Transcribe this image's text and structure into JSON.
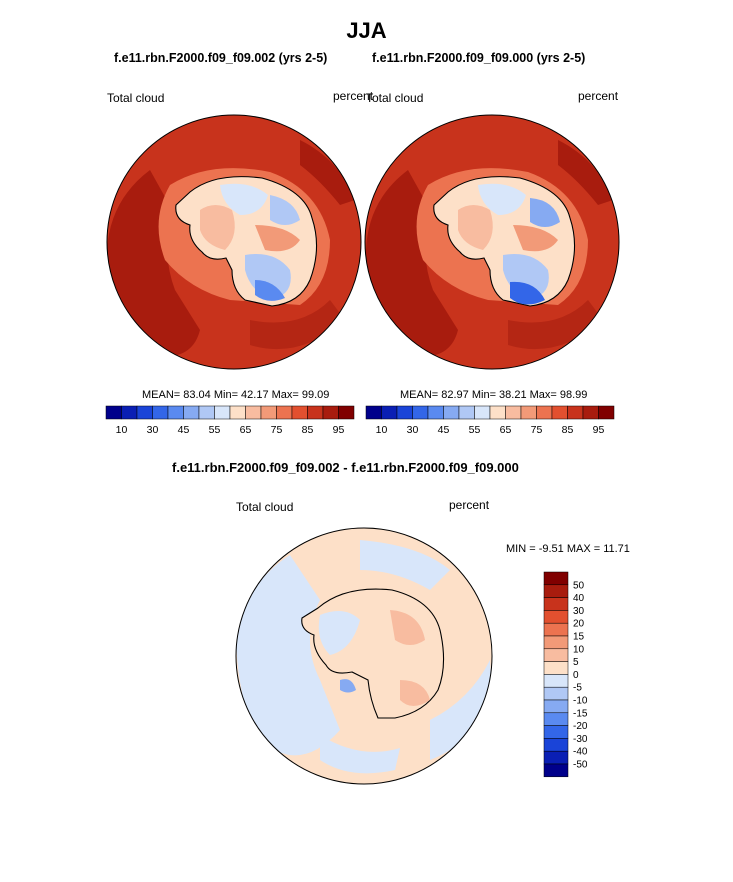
{
  "page": {
    "title": "JJA",
    "diff_title": "f.e11.rbn.F2000.f09_f09.002 - f.e11.rbn.F2000.f09_f09.000"
  },
  "chart_data": [
    {
      "type": "heatmap",
      "projection": "south polar stereographic",
      "case": "f.e11.rbn.F2000.f09_f09.002 (yrs 2-5)",
      "left_label": "Total cloud",
      "right_label": "percent",
      "mean": "83.04",
      "min": "42.17",
      "max": "99.09",
      "stats_text": "MEAN=  83.04  Min=  42.17  Max=  99.09",
      "colorbar": {
        "orientation": "horizontal",
        "levels": [
          10,
          20,
          30,
          40,
          45,
          50,
          55,
          60,
          65,
          70,
          75,
          80,
          85,
          90,
          95
        ],
        "tick_labels": [
          "10",
          "30",
          "45",
          "55",
          "65",
          "75",
          "85",
          "95"
        ]
      }
    },
    {
      "type": "heatmap",
      "projection": "south polar stereographic",
      "case": "f.e11.rbn.F2000.f09_f09.000 (yrs 2-5)",
      "left_label": "Total cloud",
      "right_label": "percent",
      "mean": "82.97",
      "min": "38.21",
      "max": "98.99",
      "stats_text": "MEAN=  82.97  Min=  38.21  Max=  98.99",
      "colorbar": {
        "orientation": "horizontal",
        "levels": [
          10,
          20,
          30,
          40,
          45,
          50,
          55,
          60,
          65,
          70,
          75,
          80,
          85,
          90,
          95
        ],
        "tick_labels": [
          "10",
          "30",
          "45",
          "55",
          "65",
          "75",
          "85",
          "95"
        ]
      }
    },
    {
      "type": "heatmap",
      "projection": "south polar stereographic",
      "case": "f.e11.rbn.F2000.f09_f09.002 - f.e11.rbn.F2000.f09_f09.000",
      "left_label": "Total cloud",
      "right_label": "percent",
      "min": "-9.51",
      "max": "11.71",
      "stats_text": "MIN =  -9.51 MAX =  11.71",
      "colorbar": {
        "orientation": "vertical",
        "levels": [
          -50,
          -40,
          -30,
          -20,
          -15,
          -10,
          -5,
          0,
          5,
          10,
          15,
          20,
          30,
          40,
          50
        ],
        "tick_labels": [
          "50",
          "40",
          "30",
          "20",
          "15",
          "10",
          "5",
          "0",
          "-5",
          "-10",
          "-15",
          "-20",
          "-30",
          "-40",
          "-50"
        ]
      }
    }
  ],
  "palette": {
    "cool_to_warm": [
      "#00008b",
      "#0a1fb4",
      "#1a44d8",
      "#3366e8",
      "#5a8af0",
      "#86aaf2",
      "#b0c8f5",
      "#d8e6fa",
      "#fde0c8",
      "#f8bca0",
      "#f29a78",
      "#ec7350",
      "#e2502f",
      "#c8331c",
      "#a81c0e",
      "#800000"
    ]
  },
  "colors": {
    "ocean_dark": "#a81c0e",
    "ocean": "#c8331c",
    "diff_background": "#fde0c8",
    "diff_blue": "#d8e6fa",
    "ice_white": "#ffffff",
    "coast": "#000000"
  }
}
